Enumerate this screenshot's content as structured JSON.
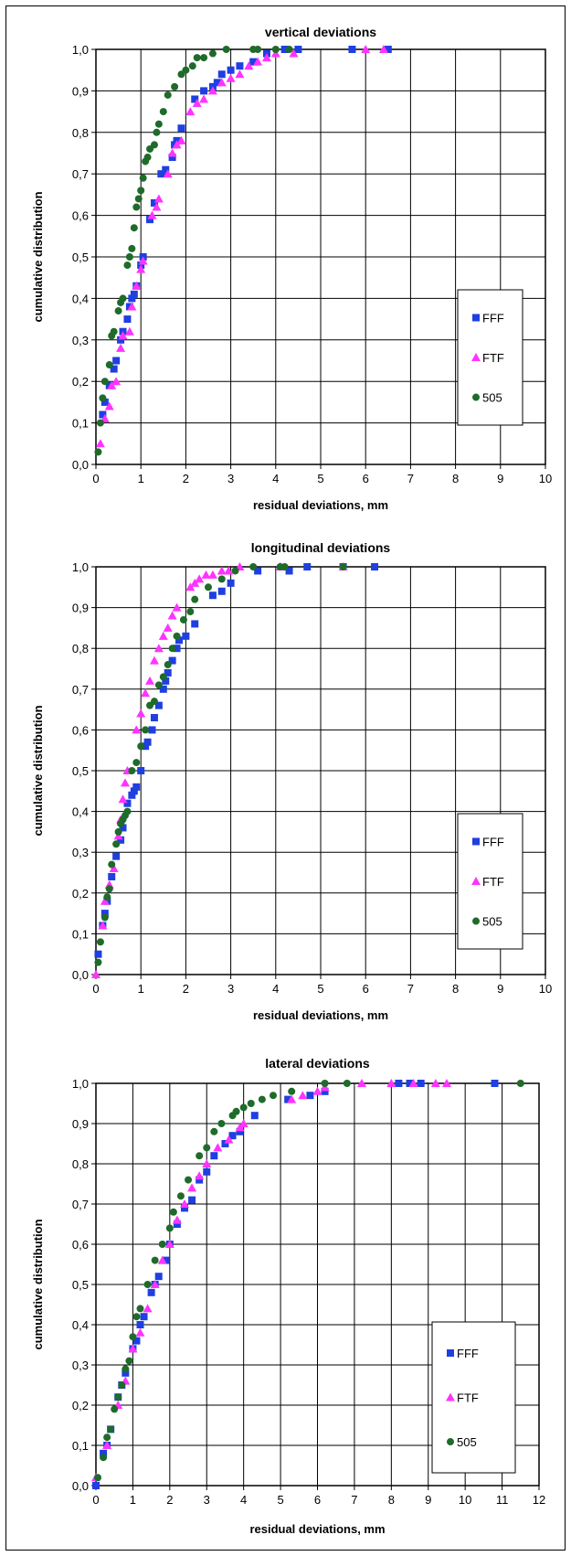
{
  "colors": {
    "FFF": "#1f3fe0",
    "FTF": "#ff33ff",
    "505": "#1f6b2a"
  },
  "chart_data": [
    {
      "type": "scatter",
      "title": "vertical deviations",
      "xlabel": "residual deviations, mm",
      "ylabel": "cumulative distribution",
      "xlim": [
        0,
        10
      ],
      "ylim": [
        0,
        1
      ],
      "x_ticks": [
        "0",
        "1",
        "2",
        "3",
        "4",
        "5",
        "6",
        "7",
        "8",
        "9",
        "10"
      ],
      "y_ticks": [
        "0,0",
        "0,1",
        "0,2",
        "0,3",
        "0,4",
        "0,5",
        "0,6",
        "0,7",
        "0,8",
        "0,9",
        "1,0"
      ],
      "grid": true,
      "legend": "right",
      "series": [
        {
          "name": "FFF",
          "marker": "square",
          "x": [
            0.15,
            0.2,
            0.3,
            0.4,
            0.45,
            0.55,
            0.6,
            0.7,
            0.75,
            0.8,
            0.85,
            0.9,
            1.0,
            1.05,
            1.2,
            1.3,
            1.45,
            1.55,
            1.7,
            1.75,
            1.8,
            1.9,
            2.2,
            2.4,
            2.6,
            2.7,
            2.8,
            3.0,
            3.2,
            3.5,
            3.8,
            4.2,
            4.5,
            5.7,
            6.5
          ],
          "y": [
            0.12,
            0.15,
            0.19,
            0.23,
            0.25,
            0.3,
            0.32,
            0.35,
            0.38,
            0.4,
            0.41,
            0.43,
            0.48,
            0.5,
            0.59,
            0.63,
            0.7,
            0.71,
            0.74,
            0.77,
            0.78,
            0.81,
            0.88,
            0.9,
            0.91,
            0.92,
            0.94,
            0.95,
            0.96,
            0.97,
            0.99,
            1.0,
            1.0,
            1.0,
            1.0
          ]
        },
        {
          "name": "FTF",
          "marker": "triangle",
          "x": [
            0.1,
            0.2,
            0.3,
            0.35,
            0.45,
            0.55,
            0.6,
            0.75,
            0.8,
            0.9,
            1.0,
            1.05,
            1.25,
            1.35,
            1.4,
            1.6,
            1.7,
            1.8,
            1.9,
            2.1,
            2.25,
            2.4,
            2.6,
            2.8,
            3.0,
            3.2,
            3.4,
            3.6,
            3.8,
            4.0,
            4.4,
            6.0,
            6.4
          ],
          "y": [
            0.05,
            0.11,
            0.14,
            0.19,
            0.2,
            0.28,
            0.31,
            0.32,
            0.38,
            0.43,
            0.47,
            0.49,
            0.6,
            0.62,
            0.64,
            0.7,
            0.75,
            0.77,
            0.78,
            0.85,
            0.87,
            0.88,
            0.9,
            0.92,
            0.93,
            0.94,
            0.96,
            0.97,
            0.98,
            0.99,
            0.99,
            1.0,
            1.0
          ]
        },
        {
          "name": "505",
          "marker": "circle",
          "x": [
            0.05,
            0.1,
            0.15,
            0.2,
            0.3,
            0.35,
            0.4,
            0.5,
            0.55,
            0.6,
            0.7,
            0.75,
            0.8,
            0.85,
            0.9,
            0.95,
            1.0,
            1.05,
            1.1,
            1.15,
            1.2,
            1.3,
            1.35,
            1.4,
            1.5,
            1.6,
            1.75,
            1.9,
            2.0,
            2.15,
            2.25,
            2.4,
            2.6,
            2.9,
            3.5,
            3.6,
            4.0,
            4.3
          ],
          "y": [
            0.03,
            0.1,
            0.16,
            0.2,
            0.24,
            0.31,
            0.32,
            0.37,
            0.39,
            0.4,
            0.48,
            0.5,
            0.52,
            0.57,
            0.62,
            0.64,
            0.66,
            0.69,
            0.73,
            0.74,
            0.76,
            0.77,
            0.8,
            0.82,
            0.85,
            0.89,
            0.91,
            0.94,
            0.95,
            0.96,
            0.98,
            0.98,
            0.99,
            1.0,
            1.0,
            1.0,
            1.0,
            1.0
          ]
        }
      ]
    },
    {
      "type": "scatter",
      "title": "longitudinal deviations",
      "xlabel": "residual deviations, mm",
      "ylabel": "cumulative distribution",
      "xlim": [
        0,
        10
      ],
      "ylim": [
        0,
        1
      ],
      "x_ticks": [
        "0",
        "1",
        "2",
        "3",
        "4",
        "5",
        "6",
        "7",
        "8",
        "9",
        "10"
      ],
      "y_ticks": [
        "0,0",
        "0,1",
        "0,2",
        "0,3",
        "0,4",
        "0,5",
        "0,6",
        "0,7",
        "0,8",
        "0,9",
        "1,0"
      ],
      "grid": true,
      "legend": "right",
      "series": [
        {
          "name": "FFF",
          "marker": "square",
          "x": [
            0.05,
            0.15,
            0.2,
            0.25,
            0.35,
            0.45,
            0.55,
            0.6,
            0.7,
            0.8,
            0.85,
            0.9,
            1.0,
            1.1,
            1.15,
            1.25,
            1.3,
            1.4,
            1.5,
            1.55,
            1.6,
            1.7,
            1.8,
            1.85,
            2.0,
            2.2,
            2.6,
            2.8,
            3.0,
            3.6,
            4.3,
            4.7,
            5.5,
            6.2
          ],
          "y": [
            0.05,
            0.12,
            0.15,
            0.18,
            0.24,
            0.29,
            0.33,
            0.36,
            0.42,
            0.44,
            0.45,
            0.46,
            0.5,
            0.56,
            0.57,
            0.6,
            0.63,
            0.66,
            0.7,
            0.72,
            0.74,
            0.77,
            0.8,
            0.82,
            0.83,
            0.86,
            0.93,
            0.94,
            0.96,
            0.99,
            0.99,
            1.0,
            1.0,
            1.0
          ]
        },
        {
          "name": "FTF",
          "marker": "triangle",
          "x": [
            0.0,
            0.15,
            0.2,
            0.3,
            0.4,
            0.5,
            0.55,
            0.6,
            0.65,
            0.7,
            0.9,
            1.0,
            1.1,
            1.2,
            1.3,
            1.4,
            1.5,
            1.6,
            1.7,
            1.8,
            2.1,
            2.2,
            2.3,
            2.45,
            2.6,
            2.8,
            2.95,
            3.2,
            4.1,
            5.5
          ],
          "y": [
            0.0,
            0.12,
            0.18,
            0.22,
            0.26,
            0.34,
            0.38,
            0.43,
            0.47,
            0.5,
            0.6,
            0.64,
            0.69,
            0.72,
            0.77,
            0.8,
            0.83,
            0.85,
            0.88,
            0.9,
            0.95,
            0.96,
            0.97,
            0.98,
            0.98,
            0.99,
            0.99,
            1.0,
            1.0,
            1.0
          ]
        },
        {
          "name": "505",
          "marker": "circle",
          "x": [
            0.05,
            0.1,
            0.2,
            0.25,
            0.3,
            0.35,
            0.45,
            0.5,
            0.55,
            0.6,
            0.65,
            0.7,
            0.8,
            0.9,
            1.0,
            1.1,
            1.2,
            1.3,
            1.4,
            1.5,
            1.6,
            1.7,
            1.8,
            1.95,
            2.1,
            2.2,
            2.5,
            2.8,
            3.1,
            3.5,
            4.1,
            4.2,
            5.5
          ],
          "y": [
            0.03,
            0.08,
            0.14,
            0.19,
            0.21,
            0.27,
            0.32,
            0.35,
            0.37,
            0.38,
            0.39,
            0.4,
            0.5,
            0.52,
            0.56,
            0.6,
            0.66,
            0.67,
            0.71,
            0.73,
            0.76,
            0.8,
            0.83,
            0.87,
            0.89,
            0.92,
            0.95,
            0.97,
            0.99,
            1.0,
            1.0,
            1.0,
            1.0
          ]
        }
      ]
    },
    {
      "type": "scatter",
      "title": "lateral deviations",
      "xlabel": "residual deviations, mm",
      "ylabel": "cumulative distribution",
      "xlim": [
        0,
        12
      ],
      "ylim": [
        0,
        1
      ],
      "x_ticks": [
        "0",
        "1",
        "2",
        "3",
        "4",
        "5",
        "6",
        "7",
        "8",
        "9",
        "10",
        "11",
        "12"
      ],
      "y_ticks": [
        "0,0",
        "0,1",
        "0,2",
        "0,3",
        "0,4",
        "0,5",
        "0,6",
        "0,7",
        "0,8",
        "0,9",
        "1,0"
      ],
      "grid": true,
      "legend": "right",
      "series": [
        {
          "name": "FFF",
          "marker": "square",
          "x": [
            0.0,
            0.2,
            0.3,
            0.4,
            0.6,
            0.7,
            0.8,
            1.0,
            1.1,
            1.2,
            1.3,
            1.5,
            1.6,
            1.7,
            1.9,
            2.0,
            2.2,
            2.4,
            2.6,
            2.8,
            3.0,
            3.2,
            3.5,
            3.7,
            3.9,
            4.3,
            5.2,
            5.8,
            6.2,
            8.2,
            8.5,
            8.8,
            10.8
          ],
          "y": [
            0.0,
            0.08,
            0.1,
            0.14,
            0.22,
            0.25,
            0.28,
            0.34,
            0.36,
            0.4,
            0.42,
            0.48,
            0.5,
            0.52,
            0.56,
            0.6,
            0.65,
            0.69,
            0.71,
            0.76,
            0.78,
            0.82,
            0.85,
            0.87,
            0.88,
            0.92,
            0.96,
            0.97,
            0.98,
            1.0,
            1.0,
            1.0,
            1.0
          ]
        },
        {
          "name": "FTF",
          "marker": "triangle",
          "x": [
            0.0,
            0.3,
            0.6,
            0.8,
            1.0,
            1.2,
            1.4,
            1.6,
            1.8,
            2.0,
            2.2,
            2.4,
            2.6,
            2.8,
            3.0,
            3.3,
            3.6,
            3.9,
            4.0,
            5.3,
            5.6,
            6.0,
            6.2,
            7.2,
            8.0,
            8.6,
            9.2,
            9.5
          ],
          "y": [
            0.02,
            0.1,
            0.2,
            0.26,
            0.34,
            0.38,
            0.44,
            0.5,
            0.56,
            0.6,
            0.66,
            0.7,
            0.74,
            0.77,
            0.8,
            0.84,
            0.86,
            0.89,
            0.9,
            0.96,
            0.97,
            0.98,
            0.99,
            1.0,
            1.0,
            1.0,
            1.0,
            1.0
          ]
        },
        {
          "name": "505",
          "marker": "circle",
          "x": [
            0.05,
            0.2,
            0.3,
            0.4,
            0.5,
            0.6,
            0.7,
            0.8,
            0.9,
            1.0,
            1.1,
            1.2,
            1.4,
            1.6,
            1.8,
            2.0,
            2.1,
            2.3,
            2.5,
            2.8,
            3.0,
            3.2,
            3.4,
            3.7,
            3.8,
            4.0,
            4.2,
            4.5,
            4.8,
            5.3,
            6.2,
            6.8,
            11.5
          ],
          "y": [
            0.02,
            0.07,
            0.12,
            0.14,
            0.19,
            0.22,
            0.25,
            0.29,
            0.31,
            0.37,
            0.42,
            0.44,
            0.5,
            0.56,
            0.6,
            0.64,
            0.68,
            0.72,
            0.76,
            0.82,
            0.84,
            0.88,
            0.9,
            0.92,
            0.93,
            0.94,
            0.95,
            0.96,
            0.97,
            0.98,
            1.0,
            1.0,
            1.0
          ]
        }
      ]
    }
  ]
}
